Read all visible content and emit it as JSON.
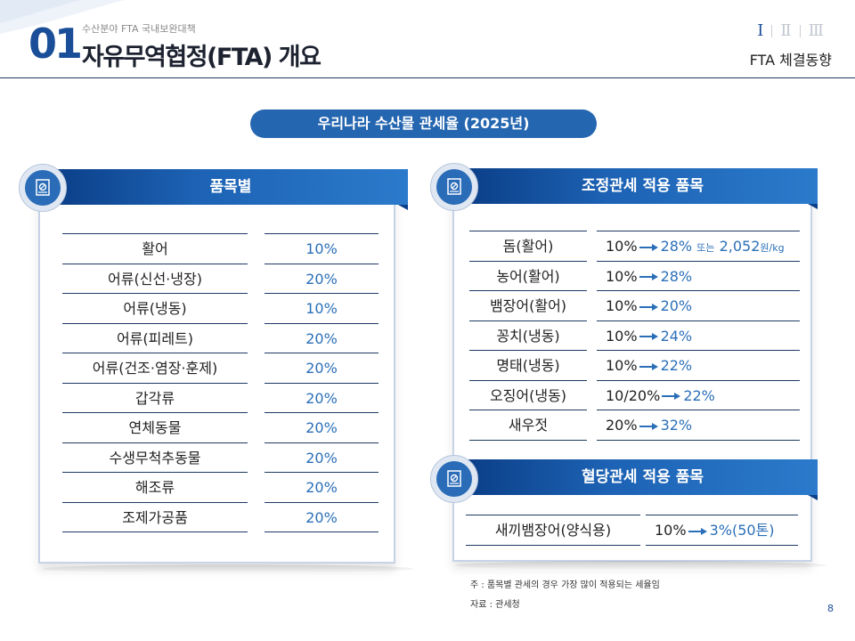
{
  "header": {
    "number": "01",
    "subtitle": "수산분야 FTA 국내보완대책",
    "title": "자유무역협정(FTA) 개요",
    "roman_tabs": [
      "Ⅰ",
      "Ⅱ",
      "Ⅲ"
    ],
    "active_tab": 0,
    "section": "FTA 체결동향"
  },
  "slide_title": "우리나라 수산물 관세율 (2025년)",
  "by_item": {
    "heading": "품목별",
    "rows": [
      {
        "label": "활어",
        "value": "10%"
      },
      {
        "label": "어류(신선·냉장)",
        "value": "20%"
      },
      {
        "label": "어류(냉동)",
        "value": "10%"
      },
      {
        "label": "어류(피레트)",
        "value": "20%"
      },
      {
        "label": "어류(건조·염장·훈제)",
        "value": "20%"
      },
      {
        "label": "갑각류",
        "value": "20%"
      },
      {
        "label": "연체동물",
        "value": "20%"
      },
      {
        "label": "수생무척추동물",
        "value": "20%"
      },
      {
        "label": "해조류",
        "value": "20%"
      },
      {
        "label": "조제가공품",
        "value": "20%"
      }
    ]
  },
  "adjusted": {
    "heading": "조정관세 적용 품목",
    "rows": [
      {
        "label": "돔(활어)",
        "from": "10%",
        "to": "28%",
        "extra_or": "또는",
        "extra_value": "2,052",
        "extra_unit": "원/kg"
      },
      {
        "label": "농어(활어)",
        "from": "10%",
        "to": "28%"
      },
      {
        "label": "뱀장어(활어)",
        "from": "10%",
        "to": "20%"
      },
      {
        "label": "꽁치(냉동)",
        "from": "10%",
        "to": "24%"
      },
      {
        "label": "명태(냉동)",
        "from": "10%",
        "to": "22%"
      },
      {
        "label": "오징어(냉동)",
        "from": "10/20%",
        "to": "22%"
      },
      {
        "label": "새우젓",
        "from": "20%",
        "to": "32%"
      }
    ]
  },
  "quota": {
    "heading": "혈당관세 적용 품목",
    "rows": [
      {
        "label": "새끼뱀장어(양식용)",
        "from": "10%",
        "to": "3%(50톤)"
      }
    ]
  },
  "notes": {
    "note": "주 : 품목별 관세의 경우 가장 많이 적용되는 세율임",
    "source": "자료 : 관세청"
  },
  "page_number": "8",
  "colors": {
    "primary": "#1a4e98",
    "accent": "#2b6fb8",
    "line": "#1d3a64"
  },
  "icons": {
    "panel": "document-stamp-icon",
    "arrow": "right-arrow-icon"
  }
}
